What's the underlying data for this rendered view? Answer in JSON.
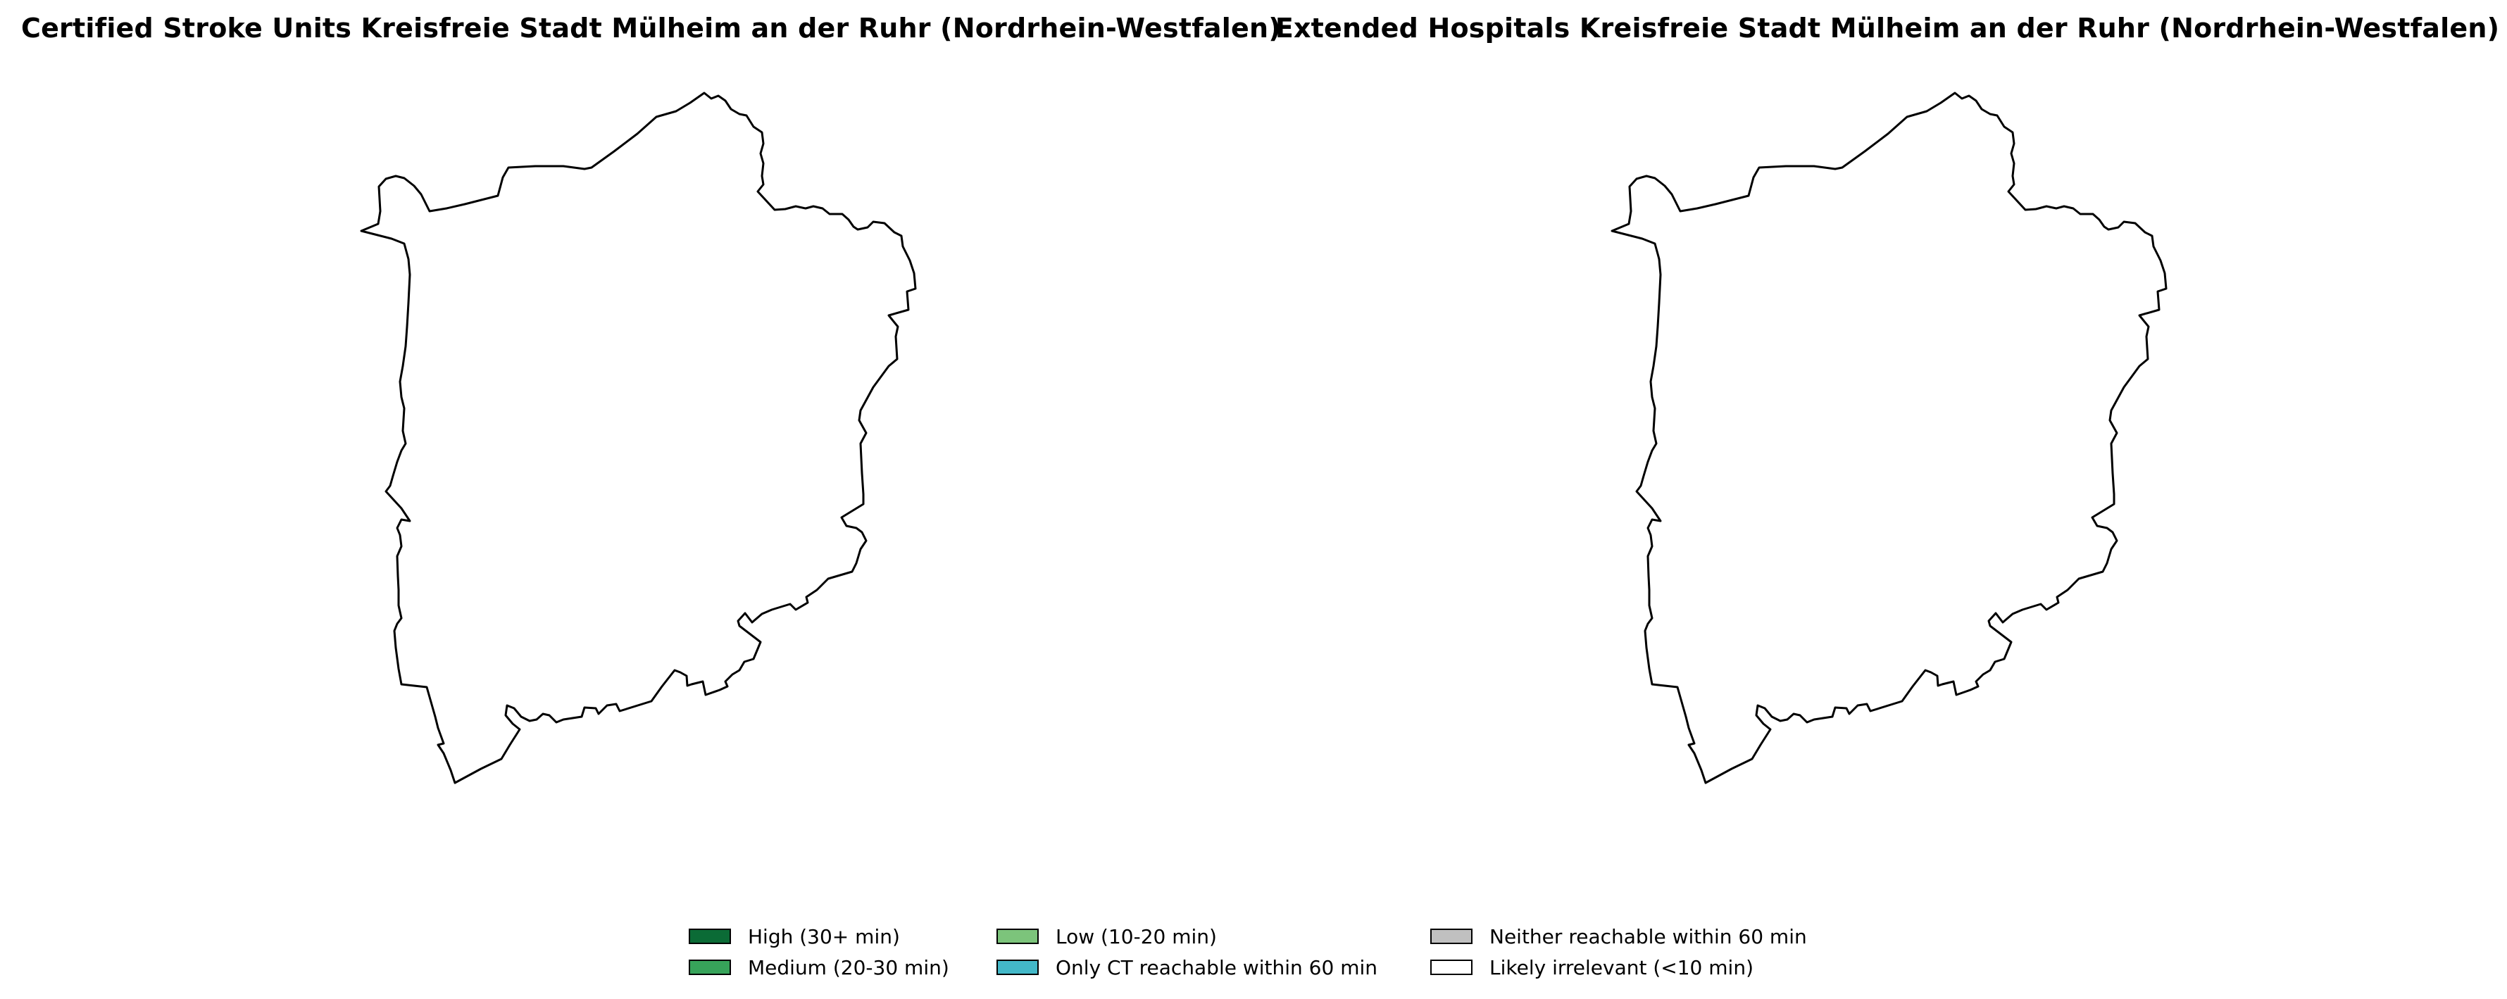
{
  "maps": [
    {
      "title": "Certified Stroke Units Kreisfreie Stadt Mülheim an der Ruhr (Nordrhein-Westfalen)"
    },
    {
      "title": "Extended Hospitals Kreisfreie Stadt Mülheim an der Ruhr (Nordrhein-Westfalen)"
    }
  ],
  "legend": [
    {
      "label": "High (30+ min)",
      "color": "#0b6b36"
    },
    {
      "label": "Medium (20-30 min)",
      "color": "#37a35a"
    },
    {
      "label": "Low (10-20 min)",
      "color": "#7cc47b"
    },
    {
      "label": "Only CT reachable within 60 min",
      "color": "#43b8c8"
    },
    {
      "label": "Neither reachable within 60 min",
      "color": "#c0c0c0"
    },
    {
      "label": "Likely irrelevant (<10 min)",
      "color": "#ffffff"
    }
  ]
}
